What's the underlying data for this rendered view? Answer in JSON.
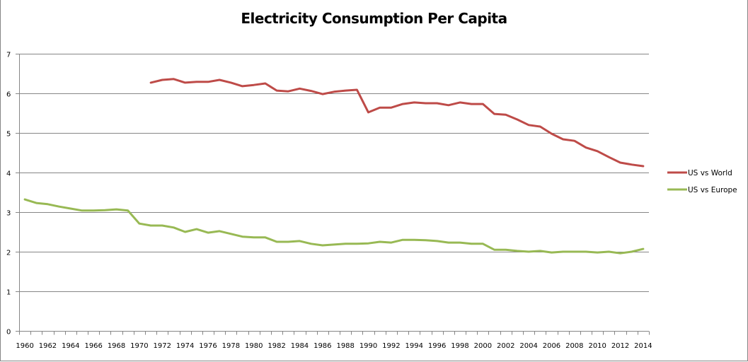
{
  "chart_data": {
    "type": "line",
    "title": "Electricity Consumption Per Capita",
    "xlabel": "",
    "ylabel": "",
    "ylim": [
      0,
      7
    ],
    "yticks": [
      0,
      1,
      2,
      3,
      4,
      5,
      6,
      7
    ],
    "grid": true,
    "legend_position": "right",
    "categories": [
      1960,
      1961,
      1962,
      1963,
      1964,
      1965,
      1966,
      1967,
      1968,
      1969,
      1970,
      1971,
      1972,
      1973,
      1974,
      1975,
      1976,
      1977,
      1978,
      1979,
      1980,
      1981,
      1982,
      1983,
      1984,
      1985,
      1986,
      1987,
      1988,
      1989,
      1990,
      1991,
      1992,
      1993,
      1994,
      1995,
      1996,
      1997,
      1998,
      1999,
      2000,
      2001,
      2002,
      2003,
      2004,
      2005,
      2006,
      2007,
      2008,
      2009,
      2010,
      2011,
      2012,
      2013,
      2014
    ],
    "xtick_labels": [
      "1960",
      "1962",
      "1964",
      "1966",
      "1968",
      "1970",
      "1972",
      "1974",
      "1976",
      "1978",
      "1980",
      "1982",
      "1984",
      "1986",
      "1988",
      "1990",
      "1992",
      "1994",
      "1996",
      "1998",
      "2000",
      "2002",
      "2004",
      "2006",
      "2008",
      "2010",
      "2012",
      "2014"
    ],
    "series": [
      {
        "name": "US vs World",
        "color": "#BE4B48",
        "values": [
          null,
          null,
          null,
          null,
          null,
          null,
          null,
          null,
          null,
          null,
          null,
          6.27,
          6.34,
          6.36,
          6.27,
          6.29,
          6.29,
          6.34,
          6.27,
          6.18,
          6.21,
          6.25,
          6.07,
          6.05,
          6.12,
          6.06,
          5.98,
          6.04,
          6.07,
          6.09,
          5.52,
          5.64,
          5.64,
          5.73,
          5.77,
          5.75,
          5.75,
          5.7,
          5.77,
          5.73,
          5.73,
          5.48,
          5.46,
          5.34,
          5.2,
          5.16,
          4.98,
          4.84,
          4.8,
          4.63,
          4.54,
          4.39,
          4.25,
          4.2,
          4.16
        ]
      },
      {
        "name": "US vs Europe",
        "color": "#98B954",
        "values": [
          3.32,
          3.23,
          3.2,
          3.14,
          3.09,
          3.04,
          3.04,
          3.05,
          3.07,
          3.04,
          2.71,
          2.66,
          2.66,
          2.61,
          2.5,
          2.57,
          2.48,
          2.52,
          2.45,
          2.38,
          2.36,
          2.36,
          2.25,
          2.25,
          2.27,
          2.2,
          2.16,
          2.18,
          2.2,
          2.2,
          2.21,
          2.25,
          2.23,
          2.3,
          2.3,
          2.29,
          2.27,
          2.23,
          2.23,
          2.2,
          2.2,
          2.05,
          2.05,
          2.02,
          2.0,
          2.02,
          1.98,
          2.0,
          2.0,
          2.0,
          1.98,
          2.0,
          1.96,
          2.0,
          2.07
        ]
      }
    ],
    "colors": {
      "gridline": "#868686",
      "axis": "#868686"
    }
  }
}
